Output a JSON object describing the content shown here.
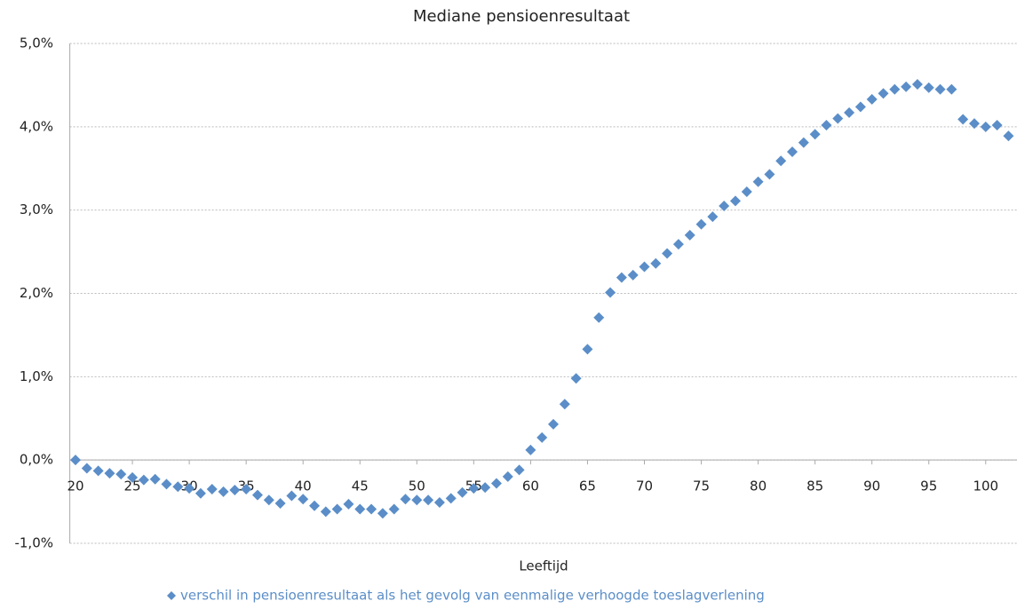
{
  "chart_data": {
    "type": "scatter",
    "title": "Mediane pensioenresultaat",
    "x_label": "Leeftijd",
    "x": [
      20,
      21,
      22,
      23,
      24,
      25,
      26,
      27,
      28,
      29,
      30,
      31,
      32,
      33,
      34,
      35,
      36,
      37,
      38,
      39,
      40,
      41,
      42,
      43,
      44,
      45,
      46,
      47,
      48,
      49,
      50,
      51,
      52,
      53,
      54,
      55,
      56,
      57,
      58,
      59,
      60,
      61,
      62,
      63,
      64,
      65,
      66,
      67,
      68,
      69,
      70,
      71,
      72,
      73,
      74,
      75,
      76,
      77,
      78,
      79,
      80,
      81,
      82,
      83,
      84,
      85,
      86,
      87,
      88,
      89,
      90,
      91,
      92,
      93,
      94,
      95,
      96,
      97,
      98,
      99,
      100,
      101,
      102
    ],
    "series": [
      {
        "name": "verschil in pensioenresultaat als het gevolg van eenmalige verhoogde toeslagverlening",
        "color": "#5b8ec8",
        "values": [
          0.0,
          -0.1,
          -0.13,
          -0.16,
          -0.17,
          -0.21,
          -0.24,
          -0.23,
          -0.29,
          -0.32,
          -0.34,
          -0.4,
          -0.35,
          -0.38,
          -0.36,
          -0.35,
          -0.42,
          -0.48,
          -0.52,
          -0.43,
          -0.47,
          -0.55,
          -0.62,
          -0.59,
          -0.53,
          -0.59,
          -0.59,
          -0.64,
          -0.59,
          -0.47,
          -0.48,
          -0.48,
          -0.51,
          -0.46,
          -0.39,
          -0.34,
          -0.33,
          -0.28,
          -0.2,
          -0.12,
          0.12,
          0.27,
          0.43,
          0.67,
          0.98,
          1.33,
          1.71,
          2.01,
          2.19,
          2.22,
          2.32,
          2.36,
          2.48,
          2.59,
          2.7,
          2.83,
          2.92,
          3.05,
          3.11,
          3.22,
          3.34,
          3.43,
          3.59,
          3.7,
          3.81,
          3.91,
          4.02,
          4.1,
          4.17,
          4.24,
          4.33,
          4.4,
          4.45,
          4.48,
          4.51,
          4.47,
          4.45,
          4.45,
          4.09,
          4.04,
          4.0,
          4.02,
          3.89
        ]
      }
    ],
    "xlim": [
      19.5,
      102.5
    ],
    "xticks": [
      20,
      25,
      30,
      35,
      40,
      45,
      50,
      55,
      60,
      65,
      70,
      75,
      80,
      85,
      90,
      95,
      100
    ],
    "ylim": [
      -1,
      5
    ],
    "yticks": [
      {
        "value": -1,
        "label": "-1,0%"
      },
      {
        "value": 0,
        "label": "0,0%"
      },
      {
        "value": 1,
        "label": "1,0%"
      },
      {
        "value": 2,
        "label": "2,0%"
      },
      {
        "value": 3,
        "label": "3,0%"
      },
      {
        "value": 4,
        "label": "4,0%"
      },
      {
        "value": 5,
        "label": "5,0%"
      }
    ],
    "grid": true,
    "legend": "bottom"
  }
}
